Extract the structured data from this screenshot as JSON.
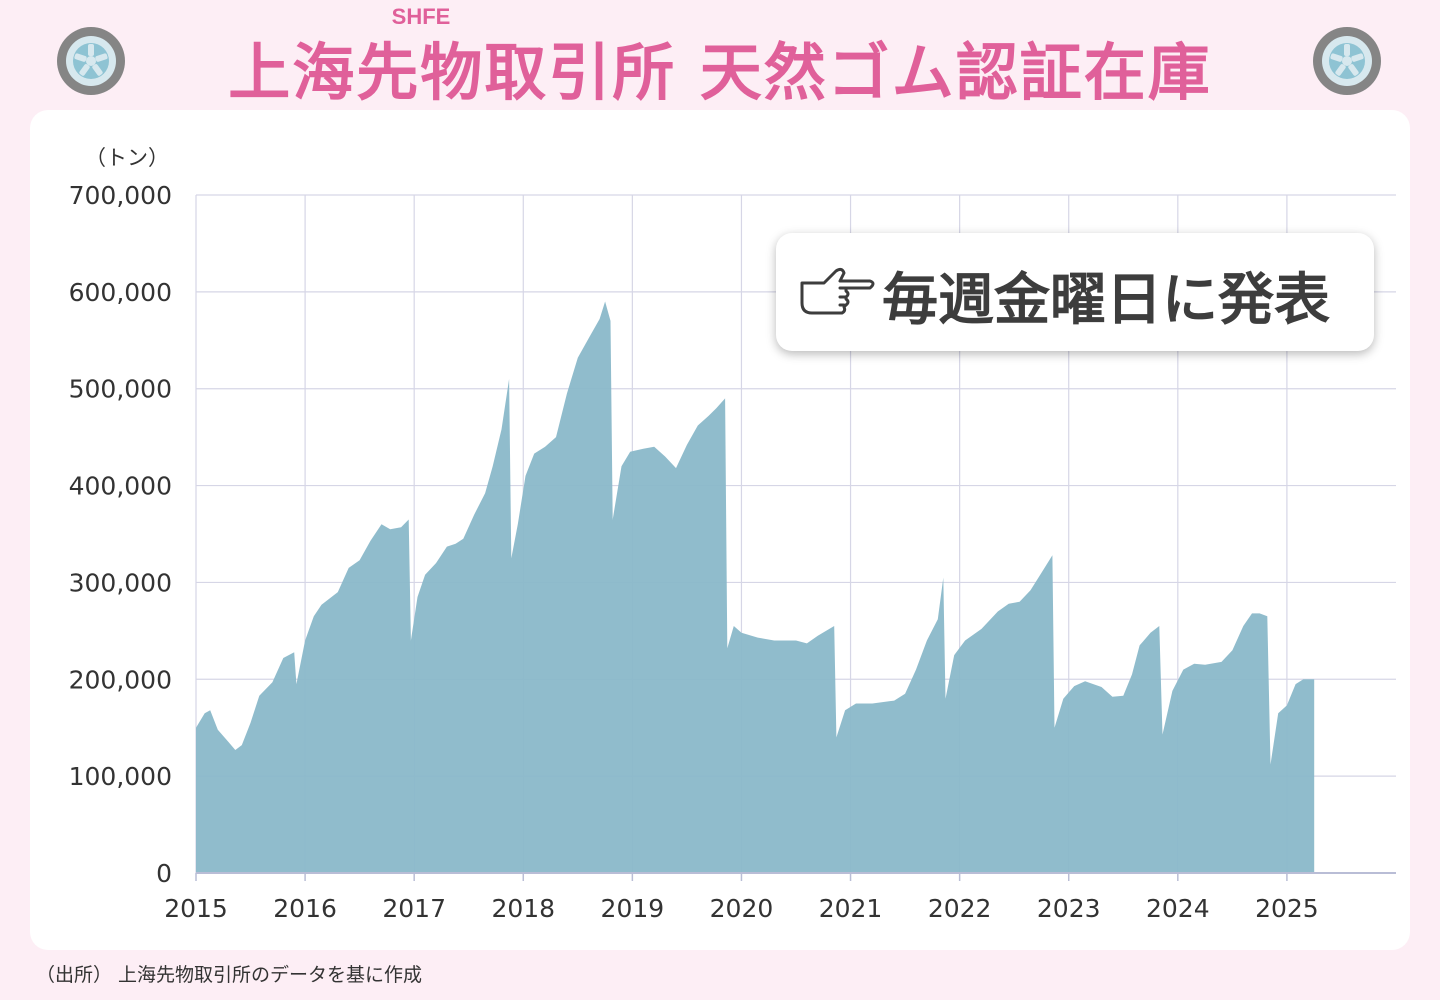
{
  "title": {
    "main": "上海先物取引所 天然ゴム認証在庫",
    "ruby": "SHFE"
  },
  "callout": {
    "text": "毎週金曜日に発表",
    "icon": "pointing-hand-icon"
  },
  "source": "（出所） 上海先物取引所のデータを基に作成",
  "icons": {
    "tire_left": "tire-icon",
    "tire_right": "tire-icon"
  },
  "colors": {
    "title": "#e0609a",
    "area": "#8ab8c9",
    "background": "#fdeef5",
    "grid": "#d6d6e6"
  },
  "chart_data": {
    "type": "area",
    "ylabel": "（トン）",
    "ylim": [
      0,
      700000
    ],
    "yticks": [
      0,
      100000,
      200000,
      300000,
      400000,
      500000,
      600000,
      700000
    ],
    "ytick_labels": [
      "0",
      "100,000",
      "200,000",
      "300,000",
      "400,000",
      "500,000",
      "600,000",
      "700,000"
    ],
    "xlim": [
      2015,
      2026
    ],
    "xticks": [
      2015,
      2016,
      2017,
      2018,
      2019,
      2020,
      2021,
      2022,
      2023,
      2024,
      2025
    ],
    "xtick_labels": [
      "2015",
      "2016",
      "2017",
      "2018",
      "2019",
      "2020",
      "2021",
      "2022",
      "2023",
      "2024",
      "2025"
    ],
    "grid": true,
    "series": [
      {
        "points": [
          [
            2015.0,
            150000
          ],
          [
            2015.08,
            165000
          ],
          [
            2015.13,
            168000
          ],
          [
            2015.2,
            148000
          ],
          [
            2015.3,
            135000
          ],
          [
            2015.36,
            127000
          ],
          [
            2015.42,
            132000
          ],
          [
            2015.5,
            155000
          ],
          [
            2015.58,
            183000
          ],
          [
            2015.7,
            197000
          ],
          [
            2015.8,
            222000
          ],
          [
            2015.9,
            228000
          ],
          [
            2015.92,
            195000
          ],
          [
            2016.0,
            240000
          ],
          [
            2016.08,
            265000
          ],
          [
            2016.15,
            277000
          ],
          [
            2016.3,
            290000
          ],
          [
            2016.4,
            315000
          ],
          [
            2016.5,
            323000
          ],
          [
            2016.6,
            343000
          ],
          [
            2016.7,
            360000
          ],
          [
            2016.78,
            355000
          ],
          [
            2016.88,
            357000
          ],
          [
            2016.95,
            365000
          ],
          [
            2016.97,
            240000
          ],
          [
            2017.03,
            285000
          ],
          [
            2017.1,
            308000
          ],
          [
            2017.2,
            320000
          ],
          [
            2017.3,
            337000
          ],
          [
            2017.38,
            340000
          ],
          [
            2017.45,
            345000
          ],
          [
            2017.55,
            370000
          ],
          [
            2017.65,
            392000
          ],
          [
            2017.72,
            420000
          ],
          [
            2017.8,
            458000
          ],
          [
            2017.87,
            510000
          ],
          [
            2017.89,
            325000
          ],
          [
            2017.95,
            360000
          ],
          [
            2018.02,
            410000
          ],
          [
            2018.1,
            433000
          ],
          [
            2018.2,
            440000
          ],
          [
            2018.3,
            450000
          ],
          [
            2018.4,
            495000
          ],
          [
            2018.5,
            532000
          ],
          [
            2018.6,
            552000
          ],
          [
            2018.7,
            572000
          ],
          [
            2018.75,
            590000
          ],
          [
            2018.8,
            570000
          ],
          [
            2018.82,
            365000
          ],
          [
            2018.9,
            420000
          ],
          [
            2018.98,
            435000
          ],
          [
            2019.1,
            438000
          ],
          [
            2019.2,
            440000
          ],
          [
            2019.3,
            430000
          ],
          [
            2019.4,
            418000
          ],
          [
            2019.5,
            442000
          ],
          [
            2019.6,
            462000
          ],
          [
            2019.7,
            472000
          ],
          [
            2019.77,
            480000
          ],
          [
            2019.85,
            490000
          ],
          [
            2019.87,
            232000
          ],
          [
            2019.93,
            255000
          ],
          [
            2020.0,
            248000
          ],
          [
            2020.15,
            243000
          ],
          [
            2020.3,
            240000
          ],
          [
            2020.5,
            240000
          ],
          [
            2020.6,
            237000
          ],
          [
            2020.7,
            245000
          ],
          [
            2020.85,
            255000
          ],
          [
            2020.87,
            140000
          ],
          [
            2020.95,
            168000
          ],
          [
            2021.05,
            175000
          ],
          [
            2021.2,
            175000
          ],
          [
            2021.4,
            178000
          ],
          [
            2021.5,
            185000
          ],
          [
            2021.6,
            210000
          ],
          [
            2021.7,
            240000
          ],
          [
            2021.8,
            262000
          ],
          [
            2021.85,
            305000
          ],
          [
            2021.87,
            180000
          ],
          [
            2021.95,
            225000
          ],
          [
            2022.05,
            240000
          ],
          [
            2022.2,
            252000
          ],
          [
            2022.35,
            270000
          ],
          [
            2022.45,
            278000
          ],
          [
            2022.55,
            280000
          ],
          [
            2022.65,
            292000
          ],
          [
            2022.75,
            310000
          ],
          [
            2022.85,
            328000
          ],
          [
            2022.87,
            150000
          ],
          [
            2022.95,
            180000
          ],
          [
            2023.05,
            193000
          ],
          [
            2023.15,
            198000
          ],
          [
            2023.3,
            192000
          ],
          [
            2023.4,
            182000
          ],
          [
            2023.5,
            183000
          ],
          [
            2023.58,
            205000
          ],
          [
            2023.65,
            235000
          ],
          [
            2023.75,
            248000
          ],
          [
            2023.83,
            255000
          ],
          [
            2023.86,
            143000
          ],
          [
            2023.95,
            188000
          ],
          [
            2024.05,
            210000
          ],
          [
            2024.15,
            216000
          ],
          [
            2024.25,
            215000
          ],
          [
            2024.4,
            218000
          ],
          [
            2024.5,
            230000
          ],
          [
            2024.6,
            255000
          ],
          [
            2024.68,
            268000
          ],
          [
            2024.75,
            268000
          ],
          [
            2024.82,
            265000
          ],
          [
            2024.85,
            112000
          ],
          [
            2024.92,
            165000
          ],
          [
            2025.0,
            173000
          ],
          [
            2025.08,
            195000
          ],
          [
            2025.15,
            200000
          ],
          [
            2025.25,
            200000
          ]
        ]
      }
    ]
  }
}
